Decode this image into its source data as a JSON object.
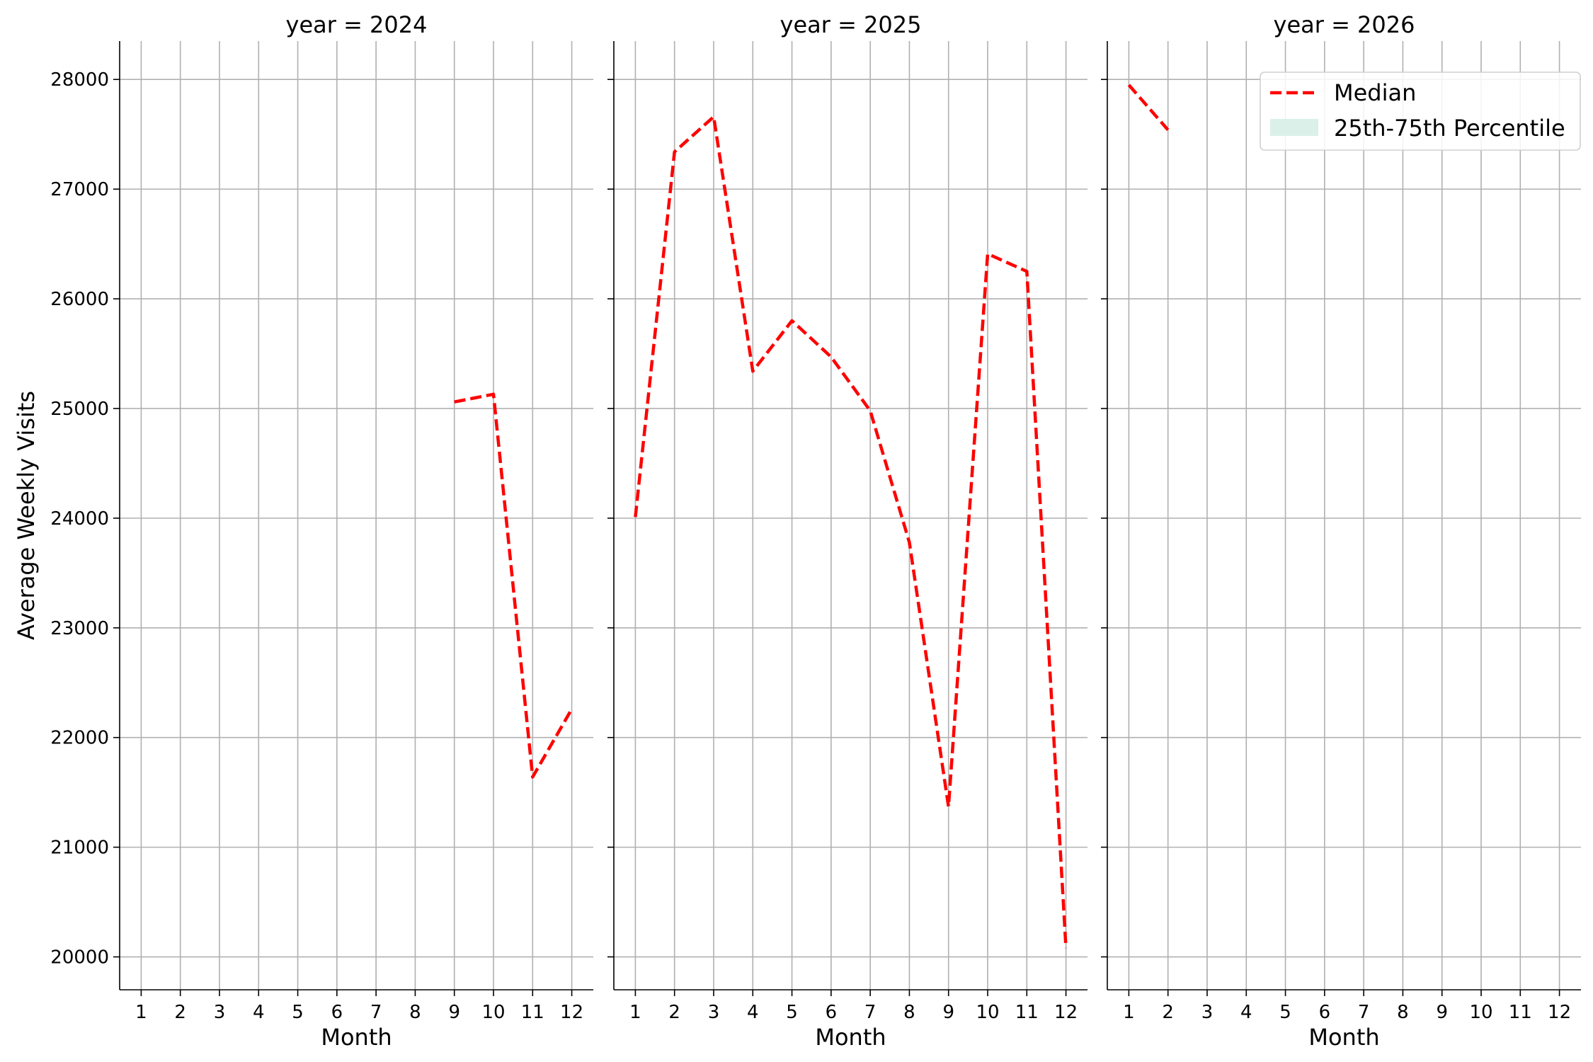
{
  "chart_data": {
    "type": "line",
    "ylabel": "Average Weekly Visits",
    "xlabel": "Month",
    "x_ticks": [
      1,
      2,
      3,
      4,
      5,
      6,
      7,
      8,
      9,
      10,
      11,
      12
    ],
    "xlim": [
      0.45,
      12.55
    ],
    "ylim": [
      19700,
      28350
    ],
    "y_ticks": [
      20000,
      21000,
      22000,
      23000,
      24000,
      25000,
      26000,
      27000,
      28000
    ],
    "grid": true,
    "legend": {
      "placement": "top-right",
      "entries": [
        {
          "label": "Median",
          "style": "dashed-line",
          "color": "#ff0000"
        },
        {
          "label": "25th-75th Percentile",
          "style": "filled-patch",
          "color": "#dcf0ea"
        }
      ]
    },
    "panels": [
      {
        "title": "year = 2024",
        "series": [
          {
            "name": "Median",
            "x": [
              9,
              10,
              11,
              12
            ],
            "y": [
              25060,
              25130,
              21640,
              22260
            ]
          }
        ]
      },
      {
        "title": "year = 2025",
        "series": [
          {
            "name": "Median",
            "x": [
              1,
              2,
              3,
              4,
              5,
              6,
              7,
              8,
              9,
              10,
              11,
              12
            ],
            "y": [
              24010,
              27340,
              27660,
              25340,
              25800,
              25470,
              24980,
              23780,
              21370,
              26410,
              26250,
              20080
            ]
          }
        ]
      },
      {
        "title": "year = 2026",
        "series": [
          {
            "name": "Median",
            "x": [
              1,
              2
            ],
            "y": [
              27950,
              27540
            ]
          }
        ]
      }
    ]
  }
}
